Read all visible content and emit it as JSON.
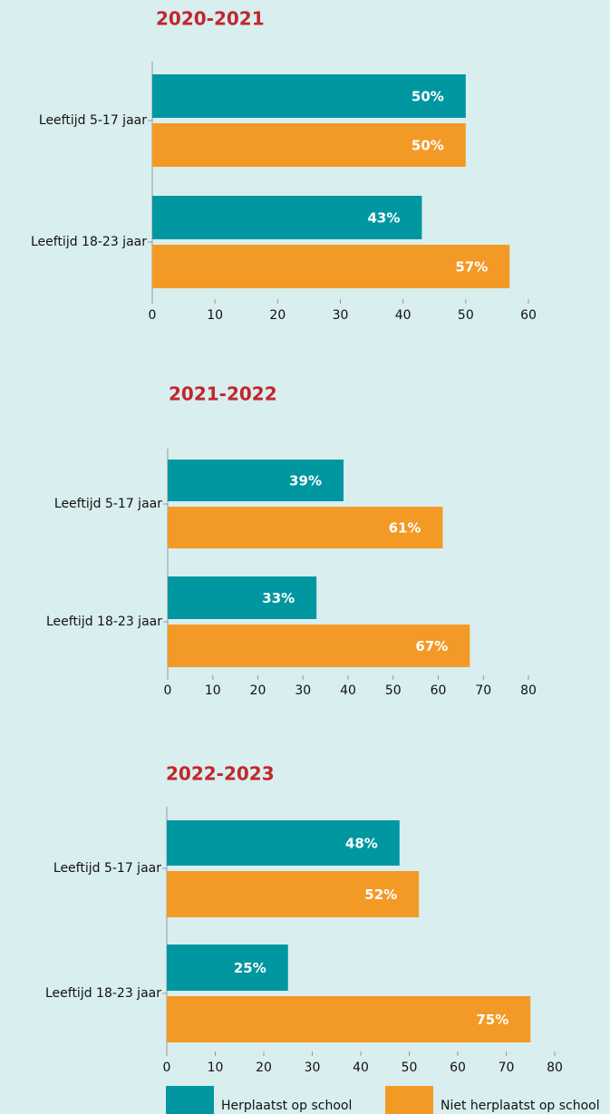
{
  "chart_data": [
    {
      "type": "bar",
      "title": "2020-2021",
      "categories": [
        "Leeftijd 5-17 jaar",
        "Leeftijd 18-23 jaar"
      ],
      "series": [
        {
          "values": [
            50,
            43
          ],
          "value_labels": [
            "50%",
            "43%"
          ]
        },
        {
          "values": [
            50,
            57
          ],
          "value_labels": [
            "50%",
            "57%"
          ]
        }
      ],
      "xlim": [
        0,
        60
      ],
      "xticks": [
        0,
        10,
        20,
        30,
        40,
        50,
        60
      ]
    },
    {
      "type": "bar",
      "title": "2021-2022",
      "categories": [
        "Leeftijd 5-17 jaar",
        "Leeftijd 18-23 jaar"
      ],
      "series": [
        {
          "values": [
            39,
            33
          ],
          "value_labels": [
            "39%",
            "33%"
          ]
        },
        {
          "values": [
            61,
            67
          ],
          "value_labels": [
            "61%",
            "67%"
          ]
        }
      ],
      "xlim": [
        0,
        80
      ],
      "xticks": [
        0,
        10,
        20,
        30,
        40,
        50,
        60,
        70,
        80
      ]
    },
    {
      "type": "bar",
      "title": "2022-2023",
      "categories": [
        "Leeftijd 5-17 jaar",
        "Leeftijd 18-23 jaar"
      ],
      "series": [
        {
          "values": [
            48,
            25
          ],
          "value_labels": [
            "48%",
            "25%"
          ]
        },
        {
          "values": [
            52,
            75
          ],
          "value_labels": [
            "52%",
            "75%"
          ]
        }
      ],
      "xlim": [
        0,
        80
      ],
      "xticks": [
        0,
        10,
        20,
        30,
        40,
        50,
        60,
        70,
        80
      ]
    }
  ],
  "legend": [
    {
      "name": "Herplaatst op school",
      "color": "#0097a1"
    },
    {
      "name": "Niet herplaatst op school",
      "color": "#f39a26"
    }
  ]
}
